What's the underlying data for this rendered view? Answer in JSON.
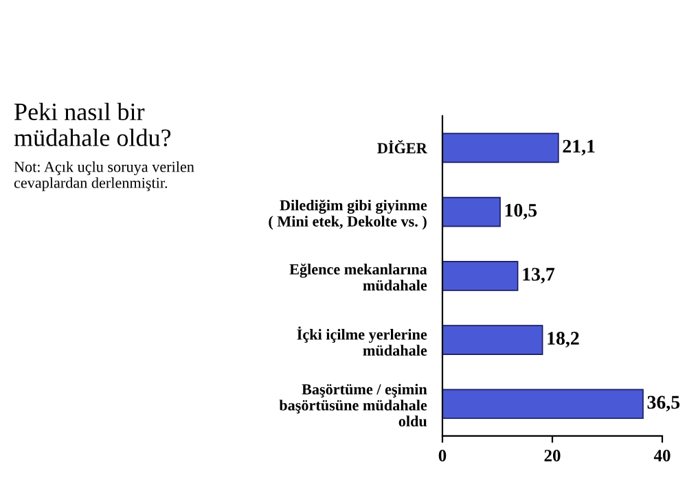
{
  "chart_data": {
    "type": "bar",
    "orientation": "horizontal",
    "title": "Peki nasıl bir\nmüdahale oldu?",
    "annotations": [
      "Not: Açık uçlu soruya verilen\ncevaplardan derlenmiştir."
    ],
    "categories": [
      "DİĞER",
      "Dilediğim gibi giyinme\n( Mini etek, Dekolte vs. )",
      "Eğlence mekanlarına\nmüdahale",
      "İçki içilme yerlerine\nmüdahale",
      "Başörtüme / eşimin\nbaşörtüsüne müdahale\noldu"
    ],
    "values": [
      21.1,
      10.5,
      13.7,
      18.2,
      36.5
    ],
    "value_labels": [
      "21,1",
      "10,5",
      "13,7",
      "18,2",
      "36,5"
    ],
    "color": "#4a5ad6",
    "xlim": [
      0,
      40
    ],
    "xticks": [
      0,
      20,
      40
    ],
    "grid": false,
    "legend": false
  }
}
